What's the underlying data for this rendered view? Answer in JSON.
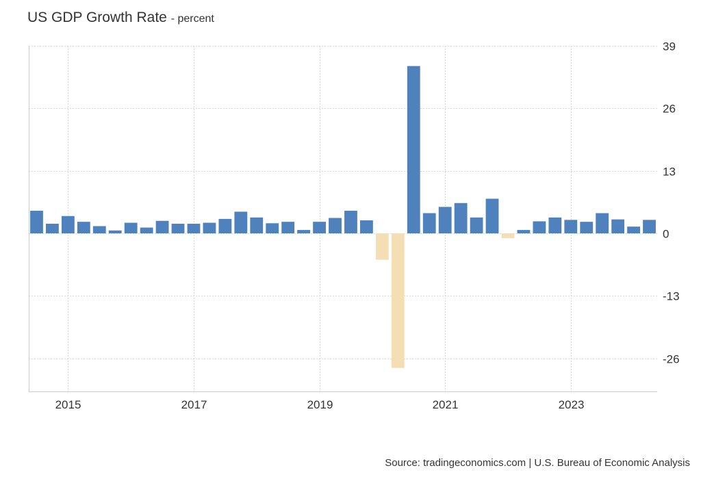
{
  "chart_data": {
    "type": "bar",
    "title": "US GDP Growth Rate",
    "subtitle": "- percent",
    "xlabel": "",
    "ylabel": "",
    "source": "Source: tradingeconomics.com | U.S. Bureau of Economic Analysis",
    "ylim": [
      -34,
      39
    ],
    "yticks": [
      39,
      26,
      13,
      0,
      -13,
      -26
    ],
    "xticks": [
      "2015",
      "2017",
      "2019",
      "2021",
      "2023"
    ],
    "grid": true,
    "legend": "none",
    "colors": {
      "positive": "#4f81bd",
      "negative": "#f5deb3",
      "grid": "#d9d9d9",
      "axis": "#cccccc",
      "text": "#333333"
    },
    "categories": [
      "2014 Q3",
      "2014 Q4",
      "2015 Q1",
      "2015 Q2",
      "2015 Q3",
      "2015 Q4",
      "2016 Q1",
      "2016 Q2",
      "2016 Q3",
      "2016 Q4",
      "2017 Q1",
      "2017 Q2",
      "2017 Q3",
      "2017 Q4",
      "2018 Q1",
      "2018 Q2",
      "2018 Q3",
      "2018 Q4",
      "2019 Q1",
      "2019 Q2",
      "2019 Q3",
      "2019 Q4",
      "2020 Q1",
      "2020 Q2",
      "2020 Q3",
      "2020 Q4",
      "2021 Q1",
      "2021 Q2",
      "2021 Q3",
      "2021 Q4",
      "2022 Q1",
      "2022 Q2",
      "2022 Q3",
      "2022 Q4",
      "2023 Q1",
      "2023 Q2",
      "2023 Q3",
      "2023 Q4",
      "2024 Q1",
      "2024 Q2"
    ],
    "values": [
      4.7,
      2.0,
      3.6,
      2.4,
      1.5,
      0.6,
      2.2,
      1.2,
      2.6,
      2.0,
      2.0,
      2.2,
      3.0,
      4.5,
      3.3,
      2.1,
      2.4,
      0.7,
      2.4,
      3.2,
      4.7,
      2.7,
      -5.5,
      -28.0,
      34.8,
      4.2,
      5.5,
      6.3,
      3.3,
      7.2,
      -1.0,
      0.7,
      2.5,
      3.3,
      2.8,
      2.4,
      4.2,
      2.9,
      1.4,
      2.8
    ]
  }
}
